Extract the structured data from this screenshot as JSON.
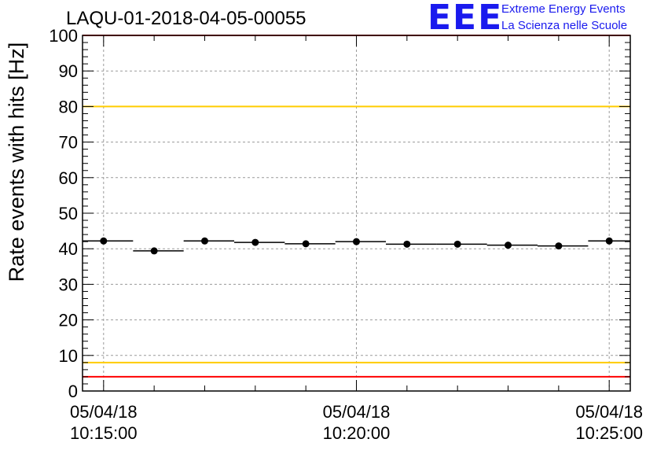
{
  "header": {
    "title": "LAQU-01-2018-04-05-00055",
    "logo_text": "EEE",
    "logo_line1": "Extreme Energy Events",
    "logo_line2": "La Scienza nelle Scuole"
  },
  "colors": {
    "points": "#000000",
    "red_line": "#ff0000",
    "yellow_line": "#ffcc00",
    "grid": "#9a9a9a",
    "logo": "#1a1aee"
  },
  "chart_data": {
    "type": "scatter",
    "title": "LAQU-01-2018-04-05-00055",
    "ylabel": "Rate events with hits [Hz]",
    "xlabel": "",
    "ylim": [
      0,
      100
    ],
    "yticks": [
      0,
      10,
      20,
      30,
      40,
      50,
      60,
      70,
      80,
      90,
      100
    ],
    "xlim": [
      "05/04/18 10:14:35",
      "05/04/18 10:25:25"
    ],
    "xticks": [
      {
        "date": "05/04/18",
        "time": "10:15:00"
      },
      {
        "date": "05/04/18",
        "time": "10:20:00"
      },
      {
        "date": "05/04/18",
        "time": "10:25:00"
      }
    ],
    "grid": true,
    "points": [
      {
        "x": "10:15:00",
        "x_start": "10:14:35",
        "x_end": "10:15:35",
        "y": 42.2
      },
      {
        "x": "10:16:00",
        "x_start": "10:15:35",
        "x_end": "10:16:35",
        "y": 39.4
      },
      {
        "x": "10:17:00",
        "x_start": "10:16:35",
        "x_end": "10:17:35",
        "y": 42.2
      },
      {
        "x": "10:18:00",
        "x_start": "10:17:35",
        "x_end": "10:18:35",
        "y": 41.8
      },
      {
        "x": "10:19:00",
        "x_start": "10:18:35",
        "x_end": "10:19:35",
        "y": 41.4
      },
      {
        "x": "10:20:00",
        "x_start": "10:19:35",
        "x_end": "10:20:35",
        "y": 42.0
      },
      {
        "x": "10:21:00",
        "x_start": "10:20:35",
        "x_end": "10:21:35",
        "y": 41.3
      },
      {
        "x": "10:22:00",
        "x_start": "10:21:35",
        "x_end": "10:22:35",
        "y": 41.3
      },
      {
        "x": "10:23:00",
        "x_start": "10:22:35",
        "x_end": "10:23:35",
        "y": 41.0
      },
      {
        "x": "10:24:00",
        "x_start": "10:23:35",
        "x_end": "10:24:35",
        "y": 40.8
      },
      {
        "x": "10:25:00",
        "x_start": "10:24:35",
        "x_end": "10:25:25",
        "y": 42.2
      }
    ],
    "reference_lines": [
      {
        "y": 100,
        "color": "red"
      },
      {
        "y": 80,
        "color": "yellow"
      },
      {
        "y": 8,
        "color": "yellow"
      },
      {
        "y": 4,
        "color": "red"
      }
    ]
  }
}
